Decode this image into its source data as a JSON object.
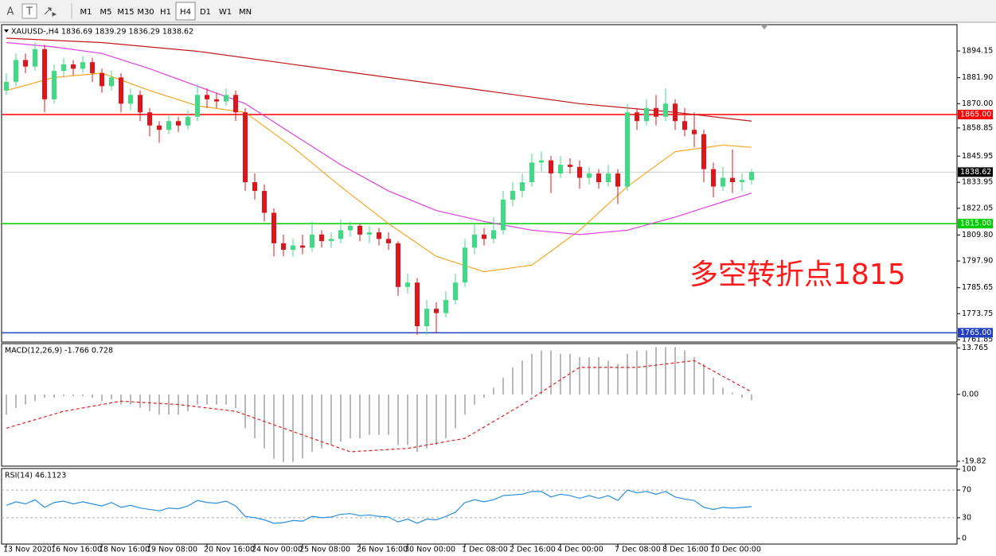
{
  "toolbar": {
    "icons": [
      "A",
      "T"
    ],
    "timeframes": [
      "M1",
      "M5",
      "M15",
      "M30",
      "H1",
      "H4",
      "D1",
      "W1",
      "MN"
    ],
    "selected": "H4"
  },
  "chart_data": [
    {
      "type": "candlestick",
      "header": "XAUUSD-,H4  1836.69 1839.29 1836.29 1838.62",
      "annotation": "多空转折点1815",
      "annotation_color": "#ff1a1a",
      "up_color": "#3ddc84",
      "down_color": "#e0151b",
      "ylim": [
        1760.75,
        1906.2
      ],
      "yticks": [
        1894.15,
        {
          "value": 1881.9,
          "label": "1881.90"
        },
        {
          "value": 1870,
          "label": "1870.00"
        },
        1858.85,
        1845.95,
        1833.95,
        1822.05,
        {
          "value": 1809.8,
          "label": "1809.80"
        },
        {
          "value": 1797.9,
          "label": "1797.90"
        },
        1785.65,
        1773.75,
        1761.85
      ],
      "levels": [
        {
          "value": 1865,
          "label": "1865.00",
          "color": "#ff0000",
          "badge_color": "#ff0000"
        },
        {
          "value": 1838.62,
          "label": "1838.62",
          "color": "#c0c0c0",
          "badge_color": "#000000"
        },
        {
          "value": 1815,
          "label": "1815.00",
          "color": "#00cc00",
          "badge_color": "#00cc00"
        },
        {
          "value": 1765,
          "label": "1765.00",
          "color": "#2040c0",
          "badge_color": "#2040c0"
        }
      ],
      "categories": [
        "13 Nov 2020",
        null,
        null,
        null,
        null,
        "16 Nov 16:00",
        null,
        null,
        null,
        null,
        "18 Nov 16:00",
        null,
        null,
        null,
        null,
        "19 Nov 08:00",
        null,
        null,
        null,
        null,
        null,
        "20 Nov 16:00",
        null,
        null,
        null,
        null,
        "24 Nov 00:00",
        null,
        null,
        null,
        null,
        "25 Nov 08:00",
        null,
        null,
        null,
        null,
        null,
        "26 Nov 16:00",
        null,
        null,
        null,
        null,
        "30 Nov 00:00",
        null,
        null,
        null,
        null,
        null,
        "1 Dec 08:00",
        null,
        null,
        null,
        null,
        "2 Dec 16:00",
        null,
        null,
        null,
        null,
        "4 Dec 00:00",
        null,
        null,
        null,
        null,
        null,
        "7 Dec 08:00",
        null,
        null,
        null,
        null,
        "8 Dec 16:00",
        null,
        null,
        null,
        null,
        "10 Dec 00:00",
        null,
        null,
        null,
        null
      ],
      "candles": [
        [
          1876,
          1884,
          1874,
          1880
        ],
        [
          1880,
          1893,
          1878,
          1890
        ],
        [
          1890,
          1893,
          1884,
          1887
        ],
        [
          1887,
          1898,
          1885,
          1895
        ],
        [
          1895,
          1897,
          1866,
          1872
        ],
        [
          1872,
          1888,
          1870,
          1885
        ],
        [
          1885,
          1891,
          1882,
          1888
        ],
        [
          1888,
          1890,
          1883,
          1886
        ],
        [
          1886,
          1892,
          1884,
          1889
        ],
        [
          1889,
          1891,
          1880,
          1884
        ],
        [
          1884,
          1886,
          1875,
          1878
        ],
        [
          1878,
          1885,
          1876,
          1882
        ],
        [
          1882,
          1884,
          1866,
          1870
        ],
        [
          1870,
          1877,
          1867,
          1874
        ],
        [
          1874,
          1876,
          1862,
          1866
        ],
        [
          1866,
          1868,
          1855,
          1860
        ],
        [
          1860,
          1862,
          1852,
          1858
        ],
        [
          1858,
          1865,
          1856,
          1862
        ],
        [
          1862,
          1864,
          1857,
          1860
        ],
        [
          1860,
          1867,
          1858,
          1864
        ],
        [
          1864,
          1879,
          1862,
          1874
        ],
        [
          1874,
          1877,
          1868,
          1872
        ],
        [
          1872,
          1875,
          1868,
          1871
        ],
        [
          1871,
          1877,
          1869,
          1874
        ],
        [
          1874,
          1876,
          1862,
          1866
        ],
        [
          1866,
          1868,
          1830,
          1834
        ],
        [
          1834,
          1838,
          1826,
          1830
        ],
        [
          1830,
          1833,
          1816,
          1820
        ],
        [
          1820,
          1822,
          1800,
          1806
        ],
        [
          1806,
          1810,
          1800,
          1803
        ],
        [
          1803,
          1808,
          1800,
          1805
        ],
        [
          1805,
          1810,
          1801,
          1804
        ],
        [
          1804,
          1816,
          1802,
          1810
        ],
        [
          1810,
          1812,
          1804,
          1807
        ],
        [
          1807,
          1811,
          1804,
          1808
        ],
        [
          1808,
          1817,
          1806,
          1812
        ],
        [
          1812,
          1816,
          1809,
          1814
        ],
        [
          1814,
          1815,
          1807,
          1810
        ],
        [
          1810,
          1814,
          1806,
          1811
        ],
        [
          1811,
          1813,
          1805,
          1808
        ],
        [
          1808,
          1811,
          1803,
          1806
        ],
        [
          1806,
          1807,
          1782,
          1786
        ],
        [
          1786,
          1792,
          1783,
          1788
        ],
        [
          1788,
          1790,
          1764,
          1768
        ],
        [
          1768,
          1780,
          1764,
          1776
        ],
        [
          1776,
          1779,
          1765,
          1774
        ],
        [
          1774,
          1784,
          1772,
          1780
        ],
        [
          1780,
          1792,
          1778,
          1788
        ],
        [
          1788,
          1808,
          1786,
          1804
        ],
        [
          1804,
          1815,
          1801,
          1810
        ],
        [
          1810,
          1813,
          1805,
          1808
        ],
        [
          1808,
          1818,
          1806,
          1812
        ],
        [
          1812,
          1830,
          1810,
          1826
        ],
        [
          1826,
          1834,
          1823,
          1830
        ],
        [
          1830,
          1838,
          1827,
          1834
        ],
        [
          1834,
          1847,
          1832,
          1843
        ],
        [
          1843,
          1848,
          1839,
          1844
        ],
        [
          1844,
          1846,
          1829,
          1838
        ],
        [
          1838,
          1846,
          1836,
          1842
        ],
        [
          1842,
          1845,
          1838,
          1841
        ],
        [
          1841,
          1844,
          1831,
          1836
        ],
        [
          1836,
          1841,
          1833,
          1838
        ],
        [
          1838,
          1840,
          1831,
          1834
        ],
        [
          1834,
          1842,
          1832,
          1838
        ],
        [
          1838,
          1840,
          1824,
          1832
        ],
        [
          1832,
          1870,
          1830,
          1866
        ],
        [
          1866,
          1868,
          1858,
          1862
        ],
        [
          1862,
          1872,
          1860,
          1868
        ],
        [
          1868,
          1874,
          1860,
          1864
        ],
        [
          1864,
          1877,
          1862,
          1870
        ],
        [
          1870,
          1872,
          1858,
          1862
        ],
        [
          1862,
          1868,
          1855,
          1858
        ],
        [
          1858,
          1866,
          1850,
          1856
        ],
        [
          1856,
          1858,
          1834,
          1840
        ],
        [
          1840,
          1843,
          1827,
          1832
        ],
        [
          1832,
          1841,
          1830,
          1836
        ],
        [
          1836,
          1849,
          1829,
          1834
        ],
        [
          1834,
          1838,
          1830,
          1835
        ],
        [
          1835,
          1840,
          1833,
          1838.62
        ]
      ],
      "ma": [
        {
          "color": "#f5a623",
          "x": [
            0,
            5,
            10,
            15,
            20,
            25,
            30,
            35,
            40,
            45,
            50,
            55,
            60,
            65,
            70,
            75,
            78
          ],
          "values": [
            1876,
            1882,
            1884,
            1876,
            1869,
            1866,
            1850,
            1832,
            1815,
            1800,
            1793,
            1796,
            1812,
            1832,
            1848,
            1851,
            1850
          ]
        },
        {
          "color": "#e040e0",
          "x": [
            0,
            5,
            10,
            15,
            20,
            25,
            30,
            35,
            40,
            45,
            50,
            55,
            60,
            65,
            70,
            75,
            78
          ],
          "values": [
            1898,
            1896,
            1893,
            1886,
            1878,
            1870,
            1856,
            1842,
            1830,
            1821,
            1816,
            1812,
            1810,
            1812,
            1818,
            1825,
            1829
          ]
        },
        {
          "color": "#c01818",
          "x": [
            0,
            10,
            20,
            30,
            40,
            50,
            60,
            70,
            78
          ],
          "values": [
            1900,
            1898,
            1894,
            1888,
            1882,
            1876,
            1870,
            1866,
            1862
          ]
        }
      ]
    },
    {
      "type": "macd",
      "header": "MACD(12,26,9) -1.766 0.728",
      "color": "#b8b8b8",
      "signal_color": "#e02020",
      "ylim": [
        -21.24,
        15.04
      ],
      "yticks": [
        13.765,
        {
          "value": 0,
          "label": "0.00"
        },
        -19.82
      ],
      "values": [
        -6,
        -4,
        -3,
        -2,
        -1,
        -1,
        -0.5,
        -0.5,
        -0.5,
        -1,
        -2,
        -1.5,
        -3,
        -3,
        -4,
        -5,
        -6,
        -6,
        -6,
        -5,
        -3,
        -3,
        -3,
        -3,
        -4,
        -10,
        -13,
        -16,
        -19,
        -20,
        -20,
        -19,
        -17,
        -16,
        -15,
        -14,
        -13,
        -13,
        -12,
        -12,
        -12,
        -15,
        -15,
        -17,
        -16,
        -15,
        -13,
        -10,
        -6,
        -3,
        -1,
        2,
        5,
        8,
        10,
        12,
        13,
        13,
        12,
        12,
        11,
        11,
        11,
        10,
        9,
        12,
        13,
        13,
        14,
        14,
        14,
        13,
        11,
        9,
        5,
        2,
        0.5,
        -1,
        -1.766
      ],
      "signal": {
        "x": [
          0,
          6,
          12,
          18,
          24,
          30,
          36,
          42,
          48,
          54,
          60,
          66,
          72,
          78
        ],
        "values": [
          -10,
          -5,
          -2,
          -3,
          -5,
          -11,
          -17,
          -16,
          -13,
          -3,
          8,
          8,
          10,
          0.728
        ]
      }
    },
    {
      "type": "rsi",
      "header": "RSI(14) 46.1123",
      "color": "#2a8fe0",
      "grid": true,
      "ylim": [
        0,
        100
      ],
      "yticks": [
        100,
        70,
        30,
        0
      ],
      "values": [
        48,
        53,
        50,
        56,
        45,
        52,
        54,
        50,
        53,
        50,
        47,
        52,
        45,
        48,
        44,
        42,
        40,
        44,
        43,
        47,
        55,
        52,
        51,
        54,
        47,
        32,
        30,
        27,
        22,
        23,
        26,
        25,
        32,
        30,
        31,
        35,
        36,
        33,
        34,
        32,
        31,
        24,
        28,
        22,
        28,
        27,
        32,
        38,
        52,
        56,
        53,
        56,
        62,
        63,
        64,
        68,
        68,
        60,
        64,
        62,
        58,
        62,
        58,
        62,
        55,
        70,
        66,
        68,
        64,
        68,
        60,
        57,
        55,
        45,
        42,
        45,
        44,
        45,
        46.1123
      ]
    }
  ]
}
